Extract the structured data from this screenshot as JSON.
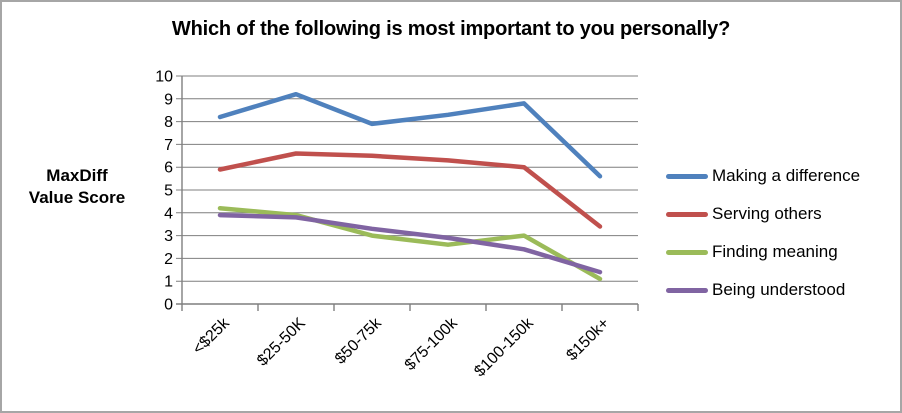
{
  "frame": {
    "border_color": "#A6A6A6",
    "background": "#FFFFFF"
  },
  "chart_data": {
    "type": "line",
    "title": "Which of the following is most important to you personally?",
    "ylabel": "MaxDiff Value Score",
    "ylabel_lines": [
      "MaxDiff",
      "Value Score"
    ],
    "categories": [
      "<$25k",
      "$25-50K",
      "$50-75k",
      "$75-100k",
      "$100-150k",
      "$150k+"
    ],
    "series": [
      {
        "name": "Making a difference",
        "color": "#4F81BD",
        "values": [
          8.2,
          9.2,
          7.9,
          8.3,
          8.8,
          5.6
        ]
      },
      {
        "name": "Serving others",
        "color": "#C0504D",
        "values": [
          5.9,
          6.6,
          6.5,
          6.3,
          6.0,
          3.4
        ]
      },
      {
        "name": "Finding meaning",
        "color": "#9BBB59",
        "values": [
          4.2,
          3.9,
          3.0,
          2.6,
          3.0,
          1.1
        ]
      },
      {
        "name": "Being understood",
        "color": "#8064A2",
        "values": [
          3.9,
          3.8,
          3.3,
          2.9,
          2.4,
          1.4
        ]
      }
    ],
    "ylim": [
      0,
      10
    ],
    "yticks": [
      0,
      1,
      2,
      3,
      4,
      5,
      6,
      7,
      8,
      9,
      10
    ],
    "grid": true,
    "legend_position": "right",
    "x_label_rotation": 45,
    "axis_color": "#7F7F7F",
    "text_color": "#000000"
  }
}
